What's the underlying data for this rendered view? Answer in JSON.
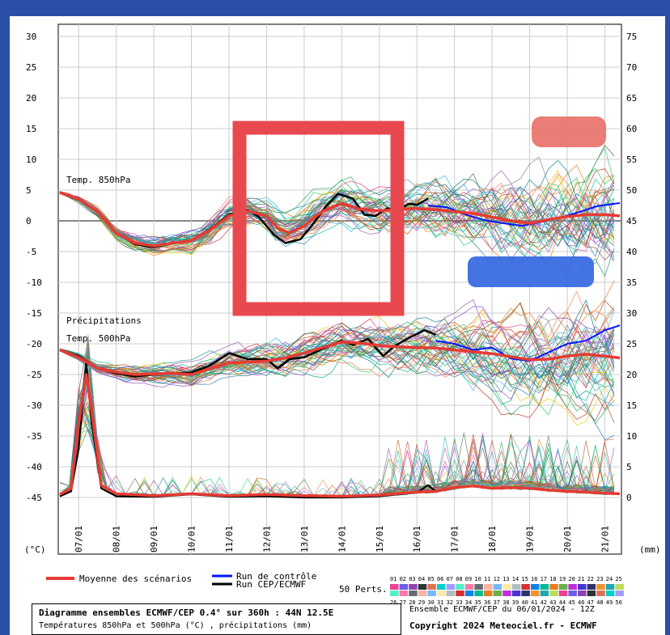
{
  "chart_data": {
    "type": "line",
    "title": "Diagramme ensembles ECMWF/CEP 0.4° sur 360h : 44N 12.5E",
    "subtitle": "Températures 850hPa et 500hPa (°C) , précipitations (mm)",
    "ensemble_info": "Ensemble ECMWF/CEP du 06/01/2024 - 12Z",
    "copyright": "Copyright 2024 Meteociel.fr - ECMWF",
    "left_unit": "(°C)",
    "right_unit": "(mm)",
    "left_axis": {
      "ticks": [
        30,
        25,
        20,
        15,
        10,
        5,
        0,
        -5,
        -10,
        -15,
        -20,
        -25,
        -30,
        -35,
        -40,
        -45
      ],
      "ylim": [
        -45,
        30
      ]
    },
    "right_axis": {
      "ticks": [
        75,
        70,
        65,
        60,
        55,
        50,
        45,
        40,
        35,
        30,
        25,
        20,
        15,
        10,
        5,
        0
      ],
      "ylim": [
        0,
        75
      ]
    },
    "x_dates": [
      "07/01",
      "08/01",
      "09/01",
      "10/01",
      "11/01",
      "12/01",
      "13/01",
      "14/01",
      "15/01",
      "16/01",
      "17/01",
      "18/01",
      "19/01",
      "20/01",
      "21/01"
    ],
    "panel_labels": {
      "t850": "Temp. 850hPa",
      "precip": "Précipitations",
      "t500": "Temp. 500hPa"
    },
    "legend": {
      "mean": "Moyenne des scénarios",
      "control": "Run de contrôle",
      "ecmwf": "Run CEP/ECMWF",
      "perts": "50 Perts.",
      "pert_ids_row1": [
        "01",
        "02",
        "03",
        "04",
        "05",
        "06",
        "07",
        "08",
        "09",
        "10",
        "11",
        "12",
        "13",
        "14",
        "15",
        "16",
        "17",
        "18",
        "19",
        "20",
        "21",
        "22",
        "23",
        "24",
        "25"
      ],
      "pert_ids_row2": [
        "26",
        "27",
        "28",
        "29",
        "30",
        "31",
        "32",
        "33",
        "34",
        "35",
        "36",
        "37",
        "38",
        "39",
        "40",
        "41",
        "42",
        "43",
        "44",
        "45",
        "46",
        "47",
        "48",
        "49",
        "50"
      ]
    },
    "colors": {
      "mean": "#e53b33",
      "control": "#0015ff",
      "ecmwf": "#000000",
      "frame": "#2a4fa8",
      "highlight_box": "#e8494f",
      "redact_red": "#e8736a",
      "redact_blue": "#3a6be0"
    },
    "t850_mean": [
      [
        6.5,
        4.6
      ],
      [
        7.0,
        3.5
      ],
      [
        7.5,
        1.5
      ],
      [
        8.0,
        -2.0
      ],
      [
        8.5,
        -3.6
      ],
      [
        9.0,
        -4.1
      ],
      [
        9.5,
        -3.6
      ],
      [
        10.0,
        -3.2
      ],
      [
        10.5,
        -1.5
      ],
      [
        11.0,
        0.8
      ],
      [
        11.5,
        1.6
      ],
      [
        12.0,
        0.8
      ],
      [
        12.3,
        -1.2
      ],
      [
        12.6,
        -2.0
      ],
      [
        13.0,
        -0.8
      ],
      [
        13.5,
        1.6
      ],
      [
        14.0,
        2.8
      ],
      [
        14.5,
        1.9
      ],
      [
        15.0,
        1.6
      ],
      [
        15.5,
        1.9
      ],
      [
        16.0,
        2.0
      ],
      [
        16.5,
        1.8
      ],
      [
        17.0,
        1.5
      ],
      [
        17.5,
        1.2
      ],
      [
        18.0,
        0.6
      ],
      [
        18.5,
        0.0
      ],
      [
        19.0,
        -0.4
      ],
      [
        19.5,
        0.2
      ],
      [
        20.0,
        0.7
      ],
      [
        20.5,
        1.0
      ],
      [
        21.0,
        1.0
      ],
      [
        21.4,
        0.8
      ]
    ],
    "t850_ecmwf": [
      [
        6.5,
        4.6
      ],
      [
        7.0,
        3.5
      ],
      [
        7.5,
        1.5
      ],
      [
        8.0,
        -2.0
      ],
      [
        8.5,
        -3.8
      ],
      [
        9.0,
        -4.3
      ],
      [
        9.5,
        -3.6
      ],
      [
        10.0,
        -3.2
      ],
      [
        10.5,
        -1.4
      ],
      [
        11.0,
        1.0
      ],
      [
        11.5,
        1.8
      ],
      [
        11.8,
        0.6
      ],
      [
        12.2,
        -2.3
      ],
      [
        12.5,
        -3.6
      ],
      [
        12.9,
        -3.0
      ],
      [
        13.2,
        -0.8
      ],
      [
        13.6,
        2.5
      ],
      [
        13.9,
        4.4
      ],
      [
        14.3,
        3.6
      ],
      [
        14.6,
        1.0
      ],
      [
        14.9,
        0.8
      ],
      [
        15.2,
        2.0
      ],
      [
        15.5,
        1.8
      ],
      [
        15.8,
        2.8
      ],
      [
        16.0,
        2.6
      ],
      [
        16.3,
        3.6
      ]
    ],
    "t850_control": [
      [
        16.3,
        2.5
      ],
      [
        16.8,
        2.2
      ],
      [
        17.3,
        1.0
      ],
      [
        17.8,
        0.1
      ],
      [
        18.3,
        -0.4
      ],
      [
        18.8,
        -0.8
      ],
      [
        19.3,
        -0.2
      ],
      [
        19.8,
        0.5
      ],
      [
        20.3,
        1.4
      ],
      [
        20.8,
        2.4
      ],
      [
        21.4,
        2.9
      ]
    ],
    "t500_mean": [
      [
        6.5,
        -21.0
      ],
      [
        7.0,
        -22.2
      ],
      [
        7.5,
        -24.0
      ],
      [
        8.0,
        -24.6
      ],
      [
        8.5,
        -25.0
      ],
      [
        9.0,
        -24.9
      ],
      [
        9.5,
        -24.8
      ],
      [
        10.0,
        -25.0
      ],
      [
        10.5,
        -24.0
      ],
      [
        11.0,
        -23.1
      ],
      [
        11.5,
        -23.0
      ],
      [
        12.0,
        -22.8
      ],
      [
        12.5,
        -22.3
      ],
      [
        13.0,
        -21.5
      ],
      [
        13.5,
        -20.6
      ],
      [
        14.0,
        -19.7
      ],
      [
        14.5,
        -19.9
      ],
      [
        15.0,
        -20.3
      ],
      [
        15.5,
        -20.5
      ],
      [
        16.0,
        -20.6
      ],
      [
        16.5,
        -20.7
      ],
      [
        17.0,
        -21.0
      ],
      [
        17.5,
        -21.3
      ],
      [
        18.0,
        -21.6
      ],
      [
        18.5,
        -22.1
      ],
      [
        19.0,
        -22.6
      ],
      [
        19.5,
        -22.5
      ],
      [
        20.0,
        -22.0
      ],
      [
        20.5,
        -21.7
      ],
      [
        21.0,
        -22.0
      ],
      [
        21.4,
        -22.3
      ]
    ],
    "t500_ecmwf": [
      [
        6.5,
        -21.0
      ],
      [
        7.0,
        -22.0
      ],
      [
        7.5,
        -24.0
      ],
      [
        8.0,
        -24.8
      ],
      [
        8.5,
        -25.3
      ],
      [
        9.0,
        -25.0
      ],
      [
        9.5,
        -24.8
      ],
      [
        10.0,
        -24.7
      ],
      [
        10.5,
        -23.5
      ],
      [
        11.0,
        -21.5
      ],
      [
        11.5,
        -22.5
      ],
      [
        12.0,
        -22.5
      ],
      [
        12.3,
        -24.0
      ],
      [
        12.6,
        -22.5
      ],
      [
        13.0,
        -22.2
      ],
      [
        13.5,
        -20.8
      ],
      [
        14.0,
        -19.5
      ],
      [
        14.3,
        -20.2
      ],
      [
        14.7,
        -19.2
      ],
      [
        15.1,
        -22.0
      ],
      [
        15.4,
        -20.4
      ],
      [
        15.8,
        -19.0
      ],
      [
        16.2,
        -17.8
      ],
      [
        16.5,
        -18.5
      ]
    ],
    "t500_control": [
      [
        16.5,
        -19.5
      ],
      [
        17.0,
        -20.0
      ],
      [
        17.5,
        -21.0
      ],
      [
        18.0,
        -20.6
      ],
      [
        18.5,
        -22.4
      ],
      [
        19.0,
        -22.8
      ],
      [
        19.5,
        -21.4
      ],
      [
        20.0,
        -20.0
      ],
      [
        20.5,
        -19.5
      ],
      [
        21.0,
        -17.8
      ],
      [
        21.4,
        -17.0
      ]
    ],
    "precip_mean_mm": [
      [
        6.5,
        0.5
      ],
      [
        6.8,
        1.5
      ],
      [
        7.0,
        12.0
      ],
      [
        7.2,
        20.0
      ],
      [
        7.35,
        14.0
      ],
      [
        7.6,
        2.0
      ],
      [
        8.0,
        0.6
      ],
      [
        9.0,
        0.3
      ],
      [
        10.0,
        0.6
      ],
      [
        11.0,
        0.3
      ],
      [
        12.0,
        0.5
      ],
      [
        13.0,
        0.3
      ],
      [
        14.0,
        0.2
      ],
      [
        15.0,
        0.4
      ],
      [
        16.0,
        0.9
      ],
      [
        16.5,
        1.0
      ],
      [
        17.0,
        1.6
      ],
      [
        17.5,
        1.9
      ],
      [
        18.0,
        1.5
      ],
      [
        18.5,
        1.6
      ],
      [
        19.0,
        1.5
      ],
      [
        19.5,
        1.2
      ],
      [
        20.0,
        1.0
      ],
      [
        20.5,
        0.9
      ],
      [
        21.0,
        0.7
      ],
      [
        21.4,
        0.6
      ]
    ],
    "precip_ecmwf_mm": [
      [
        6.5,
        0.2
      ],
      [
        6.8,
        1.0
      ],
      [
        7.0,
        8.0
      ],
      [
        7.2,
        22.0
      ],
      [
        7.35,
        12.0
      ],
      [
        7.6,
        1.5
      ],
      [
        8.0,
        0.2
      ],
      [
        9.0,
        0.1
      ],
      [
        10.0,
        0.5
      ],
      [
        11.0,
        0.1
      ],
      [
        12.0,
        0.2
      ],
      [
        13.0,
        0.0
      ],
      [
        14.0,
        0.0
      ],
      [
        15.0,
        0.2
      ],
      [
        15.5,
        0.5
      ],
      [
        16.0,
        0.8
      ],
      [
        16.3,
        2.0
      ],
      [
        16.5,
        1.0
      ]
    ]
  }
}
